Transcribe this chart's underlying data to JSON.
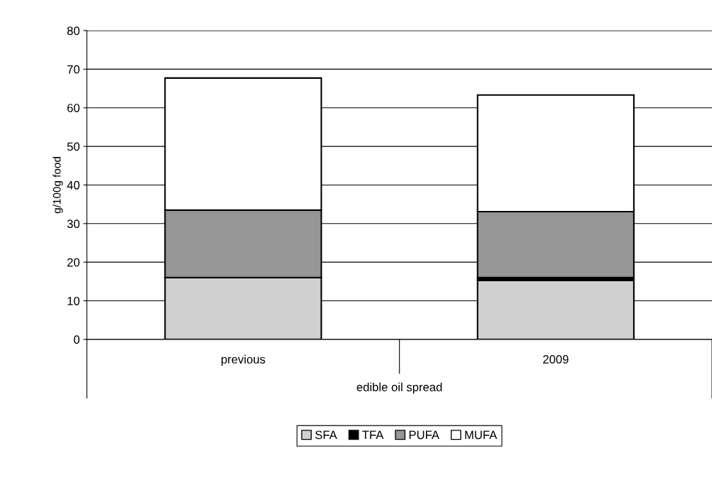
{
  "chart_data": {
    "type": "bar",
    "stacked": true,
    "xlabel": "edible oil spread",
    "ylabel": "g/100g food",
    "categories": [
      "previous",
      "2009"
    ],
    "series": [
      {
        "name": "SFA",
        "color": "#d0d0d0",
        "values": [
          16.0,
          15.3
        ]
      },
      {
        "name": "TFA",
        "color": "#000000",
        "values": [
          0.0,
          0.7
        ]
      },
      {
        "name": "PUFA",
        "color": "#969696",
        "values": [
          17.5,
          17.1
        ]
      },
      {
        "name": "MUFA",
        "color": "#ffffff",
        "values": [
          34.2,
          30.2
        ]
      }
    ],
    "ylim": [
      0,
      80
    ],
    "yticks": [
      0,
      10,
      20,
      30,
      40,
      50,
      60,
      70,
      80
    ],
    "grid": "y",
    "legend": "bottom"
  }
}
